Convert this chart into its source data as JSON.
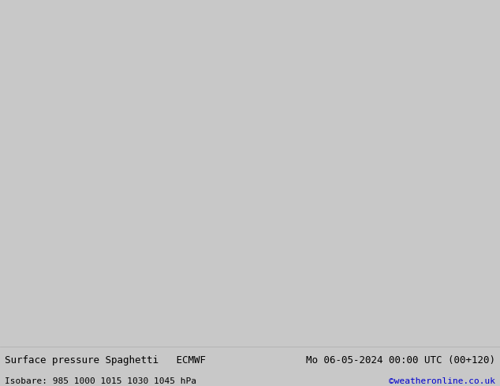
{
  "title_left": "Surface pressure Spaghetti   ECMWF",
  "title_right": "Mo 06-05-2024 00:00 UTC (00+120)",
  "subtitle_left": "Isobare: 985 1000 1015 1030 1045 hPa",
  "subtitle_right": "©weatheronline.co.uk",
  "subtitle_right_color": "#0000cc",
  "background_color": "#c8c8c8",
  "ocean_color": "#f0f0f0",
  "land_color": "#c8e8b0",
  "land_edge_color": "#aaaaaa",
  "footer_bg": "#d8d8d8",
  "spaghetti_colors": [
    "#808080",
    "#808080",
    "#808080",
    "#808080",
    "#808080",
    "#808080",
    "#808080",
    "#808080",
    "#808080",
    "#808080",
    "#ff0000",
    "#0000ff",
    "#00cc00",
    "#ff00ff",
    "#00cccc",
    "#ff8800",
    "#8800ff",
    "#ffcc00",
    "#00aa44",
    "#ff4488",
    "#4488ff",
    "#88ff44",
    "#cc8800",
    "#8800cc",
    "#cc0088",
    "#ff0000",
    "#0000ff",
    "#00cc00",
    "#ff00ff",
    "#00cccc",
    "#ff8800",
    "#8800ff",
    "#ffcc00",
    "#00aa44",
    "#ff4488",
    "#4488ff",
    "#88ff44",
    "#cc8800",
    "#8800cc",
    "#cc0088",
    "#ff0000",
    "#0000ff",
    "#00cc00",
    "#ff00ff",
    "#00cccc",
    "#ff8800",
    "#8800ff",
    "#ffcc00",
    "#00aa44",
    "#ff4488",
    "#4488ff"
  ],
  "text_color": "#000000",
  "font_size_title": 9,
  "font_size_subtitle": 8,
  "lon_min": 60,
  "lon_max": 200,
  "lat_min": -20,
  "lat_max": 65,
  "fig_width": 6.34,
  "fig_height": 4.9,
  "dpi": 100
}
